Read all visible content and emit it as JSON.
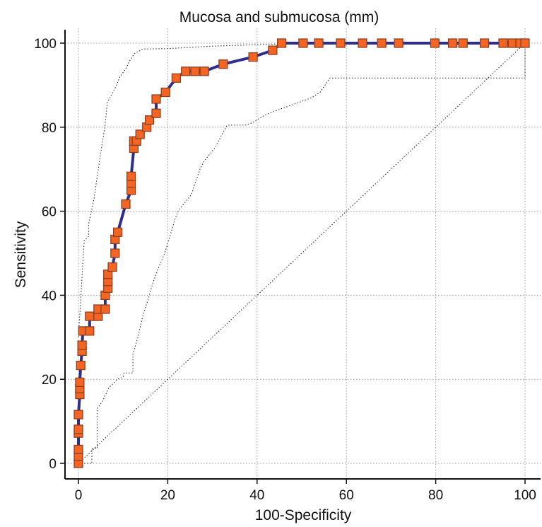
{
  "chart_data": {
    "type": "line",
    "title": "Mucosa and submucosa (mm)",
    "xlabel": "100-Specificity",
    "ylabel": "Sensitivity",
    "xlim": [
      0,
      100
    ],
    "ylim": [
      0,
      100
    ],
    "x_ticks": [
      "0",
      "20",
      "40",
      "60",
      "80",
      "100"
    ],
    "y_ticks": [
      "0",
      "20",
      "40",
      "60",
      "80",
      "100"
    ],
    "grid": true,
    "colors": {
      "roc_line": "#2e2e8c",
      "marker_fill": "#f26522",
      "marker_edge": "#8a3b1e",
      "ci": "#333333"
    },
    "roc_points": [
      [
        0,
        0
      ],
      [
        0,
        1.7
      ],
      [
        0,
        3.3
      ],
      [
        0,
        7.2
      ],
      [
        0,
        8.1
      ],
      [
        0,
        11.6
      ],
      [
        0.3,
        16.4
      ],
      [
        0.3,
        17.8
      ],
      [
        0.3,
        19.3
      ],
      [
        0.5,
        23.3
      ],
      [
        0.8,
        26.7
      ],
      [
        0.8,
        28.1
      ],
      [
        1,
        31.5
      ],
      [
        2.5,
        31.5
      ],
      [
        2.5,
        35
      ],
      [
        4.4,
        35
      ],
      [
        4.4,
        36.7
      ],
      [
        6,
        36.7
      ],
      [
        6,
        40
      ],
      [
        6.6,
        41.7
      ],
      [
        6.6,
        43.3
      ],
      [
        6.6,
        45
      ],
      [
        7.6,
        46.7
      ],
      [
        8.2,
        50
      ],
      [
        8.2,
        53.3
      ],
      [
        8.8,
        55
      ],
      [
        10.6,
        61.7
      ],
      [
        11.8,
        65
      ],
      [
        11.8,
        66.7
      ],
      [
        11.8,
        68.3
      ],
      [
        12.4,
        75
      ],
      [
        12.4,
        76.7
      ],
      [
        13,
        76.7
      ],
      [
        13.8,
        78.3
      ],
      [
        15.3,
        80
      ],
      [
        15.9,
        81.7
      ],
      [
        17.4,
        83.3
      ],
      [
        17.4,
        86.7
      ],
      [
        19.5,
        88.3
      ],
      [
        21.9,
        91.7
      ],
      [
        24,
        93.3
      ],
      [
        26.1,
        93.3
      ],
      [
        28.2,
        93.3
      ],
      [
        32.4,
        95
      ],
      [
        39.1,
        96.7
      ],
      [
        43.5,
        98.3
      ],
      [
        45.5,
        100
      ],
      [
        50.3,
        100
      ],
      [
        53.8,
        100
      ],
      [
        58.7,
        100
      ],
      [
        63.6,
        100
      ],
      [
        67.9,
        100
      ],
      [
        71.7,
        100
      ],
      [
        79.8,
        100
      ],
      [
        83.8,
        100
      ],
      [
        86.1,
        100
      ],
      [
        90.9,
        100
      ],
      [
        95.1,
        100
      ],
      [
        97.2,
        100
      ],
      [
        98.9,
        100
      ],
      [
        100,
        100
      ]
    ],
    "ci_upper": [
      [
        0,
        30
      ],
      [
        1.3,
        53
      ],
      [
        2.3,
        54
      ],
      [
        2.3,
        57
      ],
      [
        3.5,
        63
      ],
      [
        4.3,
        69
      ],
      [
        5.3,
        76
      ],
      [
        5.9,
        80
      ],
      [
        6.5,
        86
      ],
      [
        7.6,
        88
      ],
      [
        8.5,
        90
      ],
      [
        9.3,
        92
      ],
      [
        10.7,
        94
      ],
      [
        11.3,
        95.5
      ],
      [
        12.5,
        97.5
      ],
      [
        14.4,
        98.6
      ],
      [
        20,
        98.7
      ],
      [
        30,
        99.3
      ],
      [
        45,
        99.8
      ],
      [
        100,
        100
      ]
    ],
    "ci_lower": [
      [
        0,
        0
      ],
      [
        3,
        0
      ],
      [
        3,
        3.5
      ],
      [
        4.2,
        3.5
      ],
      [
        4.2,
        13
      ],
      [
        5.5,
        15
      ],
      [
        6.8,
        18
      ],
      [
        8.7,
        20
      ],
      [
        10,
        20.5
      ],
      [
        10.2,
        21.5
      ],
      [
        12.2,
        21.5
      ],
      [
        12.2,
        26
      ],
      [
        13.3,
        30
      ],
      [
        14.4,
        35
      ],
      [
        15.6,
        39
      ],
      [
        16.7,
        43
      ],
      [
        18.1,
        47
      ],
      [
        19.3,
        50
      ],
      [
        19.9,
        52
      ],
      [
        21.6,
        58
      ],
      [
        22.3,
        60
      ],
      [
        23.8,
        62
      ],
      [
        25.3,
        64
      ],
      [
        27.2,
        70
      ],
      [
        28.2,
        72
      ],
      [
        30.5,
        75
      ],
      [
        32,
        78
      ],
      [
        33.3,
        80.5
      ],
      [
        37.4,
        80.5
      ],
      [
        38.8,
        81
      ],
      [
        41.9,
        83
      ],
      [
        47,
        85
      ],
      [
        52.2,
        87
      ],
      [
        54.1,
        88.3
      ],
      [
        56.3,
        91.7
      ],
      [
        100,
        91.7
      ],
      [
        100,
        100
      ]
    ]
  }
}
